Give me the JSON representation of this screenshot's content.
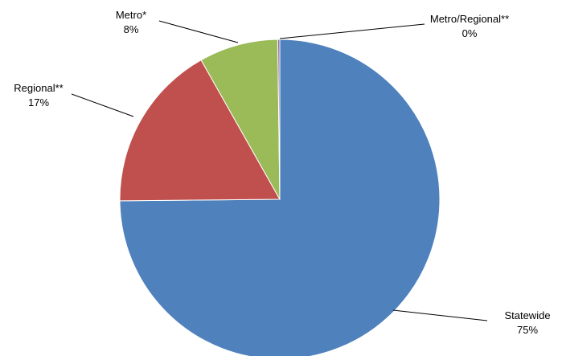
{
  "chart_data": {
    "type": "pie",
    "slices": [
      {
        "label": "Statewide",
        "value": 75,
        "value_text": "75%",
        "color": "#4F81BD"
      },
      {
        "label": "Regional**",
        "value": 17,
        "value_text": "17%",
        "color": "#C0504D"
      },
      {
        "label": "Metro*",
        "value": 8,
        "value_text": "8%",
        "color": "#9BBB59"
      },
      {
        "label": "Metro/Regional**",
        "value": 0.2,
        "value_text": "0%",
        "color": "#8064A2"
      }
    ],
    "start_angle_deg": 0,
    "direction": "clockwise",
    "legend": "none",
    "labels": "outside with leader lines"
  }
}
